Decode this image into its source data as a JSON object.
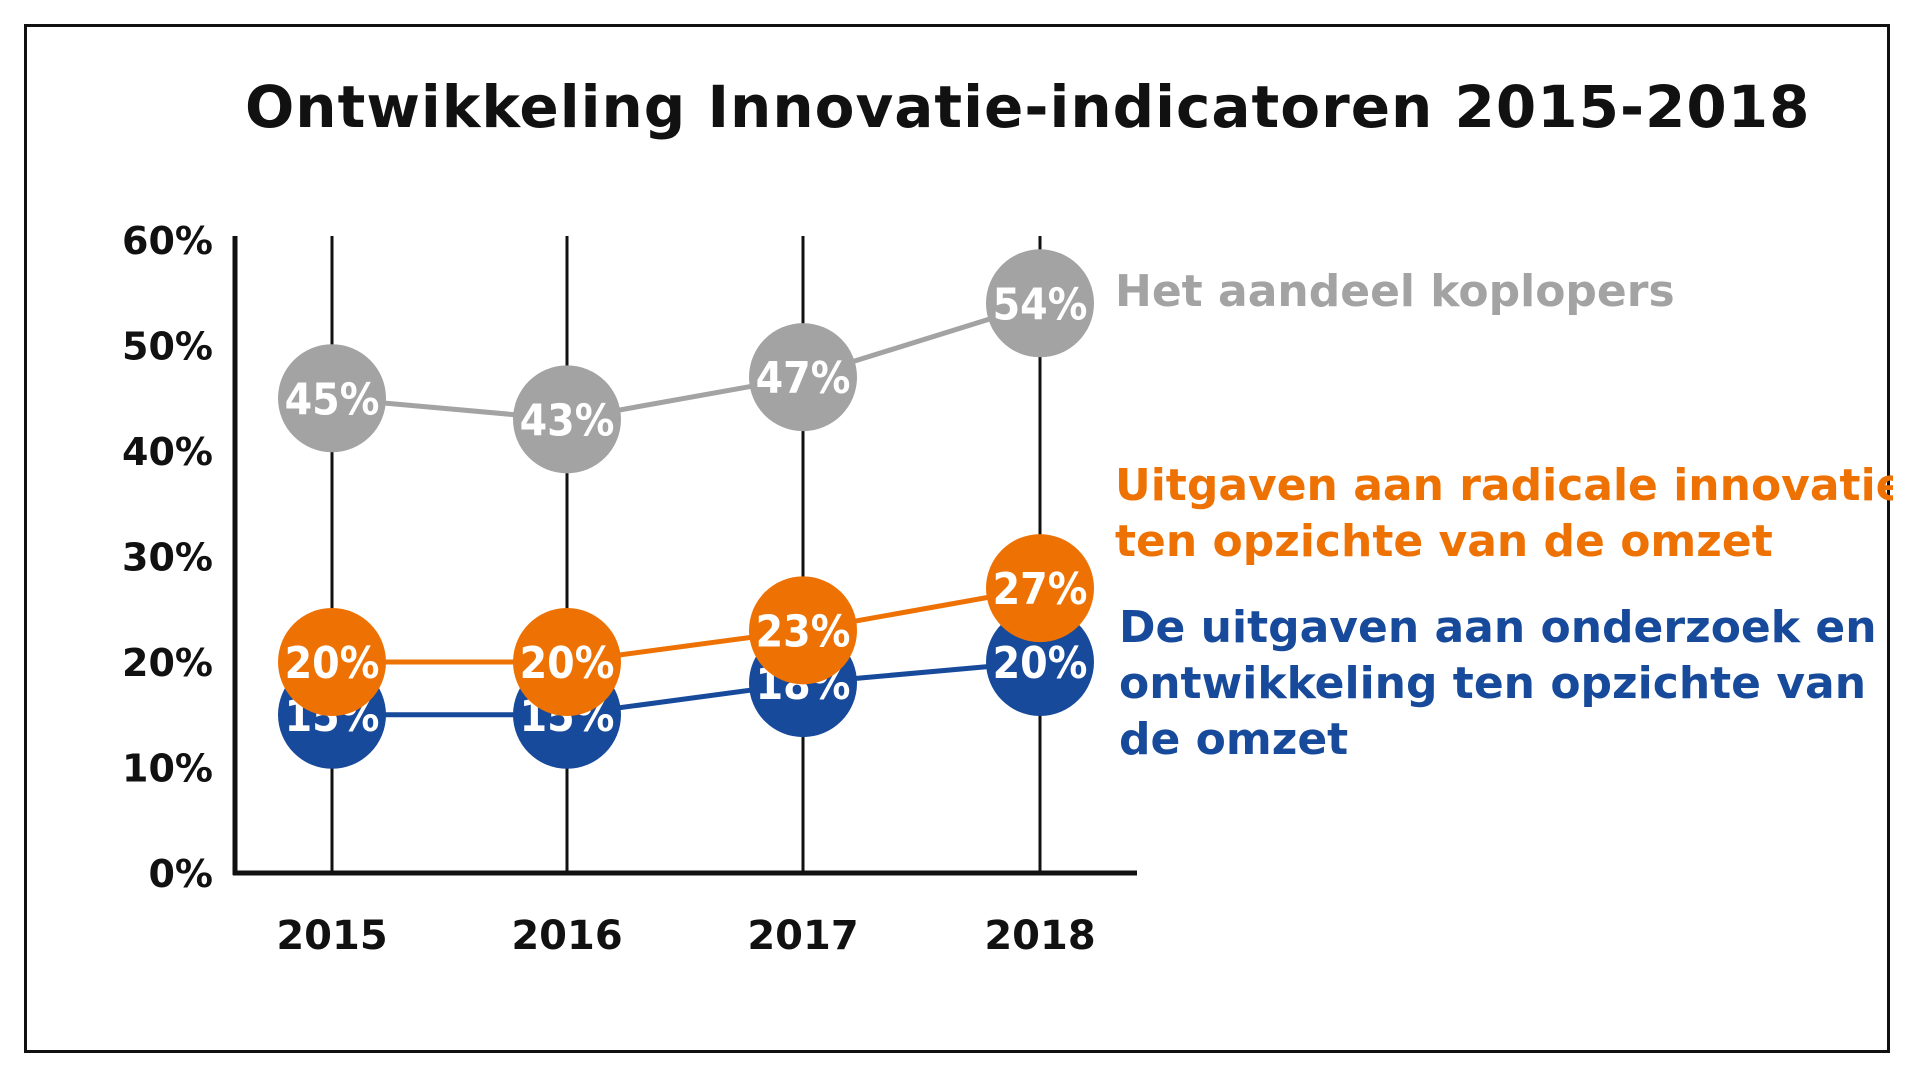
{
  "chart_data": {
    "type": "line",
    "title": "Ontwikkeling Innovatie-indicatoren 2015-2018",
    "categories": [
      "2015",
      "2016",
      "2017",
      "2018"
    ],
    "y_ticks": [
      "0%",
      "10%",
      "20%",
      "30%",
      "40%",
      "50%",
      "60%"
    ],
    "ylim": [
      0,
      60
    ],
    "grid": "vertical lines at categories",
    "series": [
      {
        "name": "Het aandeel koplopers",
        "legend_lines": [
          "Het aandeel koplopers"
        ],
        "color": "#a3a3a3",
        "values": [
          45,
          43,
          47,
          54
        ],
        "labels": [
          "45%",
          "43%",
          "47%",
          "54%"
        ]
      },
      {
        "name": "De uitgaven aan onderzoek en ontwikkeling ten opzichte van de omzet",
        "legend_lines": [
          "De uitgaven aan onderzoek en",
          "ontwikkeling ten opzichte van",
          "de omzet"
        ],
        "color": "#174a9b",
        "values": [
          15,
          15,
          18,
          20
        ],
        "labels": [
          "15%",
          "15%",
          "18%",
          "20%"
        ]
      },
      {
        "name": "Uitgaven aan radicale innovatie ten opzichte van de omzet",
        "legend_lines": [
          "Uitgaven aan radicale innovatie",
          "ten opzichte van de omzet"
        ],
        "color": "#ee7203",
        "values": [
          20,
          20,
          23,
          27
        ],
        "labels": [
          "20%",
          "20%",
          "23%",
          "27%"
        ]
      }
    ]
  }
}
